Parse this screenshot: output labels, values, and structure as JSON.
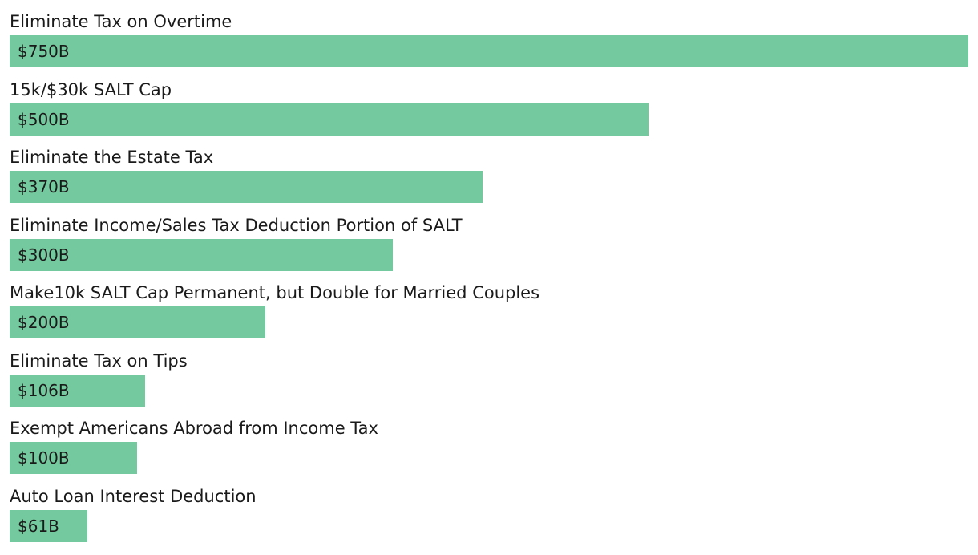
{
  "chart_data": {
    "type": "bar",
    "orientation": "horizontal",
    "title": "",
    "xlabel": "",
    "ylabel": "",
    "xlim": [
      0,
      750
    ],
    "unit": "billions USD",
    "bar_color": "#74c99e",
    "categories": [
      "Eliminate Tax on Overtime",
      "15k/$30k SALT Cap",
      "Eliminate the Estate Tax",
      "Eliminate Income/Sales Tax Deduction Portion of SALT",
      "Make10k SALT Cap Permanent, but Double for Married Couples",
      "Eliminate Tax on Tips",
      "Exempt Americans Abroad from Income Tax",
      "Auto Loan Interest Deduction"
    ],
    "values": [
      750,
      500,
      370,
      300,
      200,
      106,
      100,
      61
    ],
    "value_labels": [
      "$750B",
      "$500B",
      "$370B",
      "$300B",
      "$200B",
      "$106B",
      "$100B",
      "$61B"
    ]
  }
}
